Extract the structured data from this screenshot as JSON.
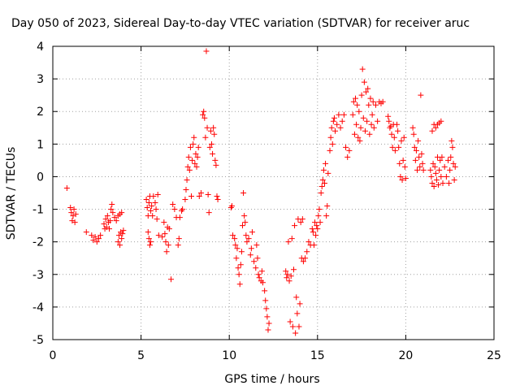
{
  "chart_data": {
    "type": "scatter",
    "title": "Day 050 of 2023, Sidereal Day-to-day VTEC variation (SDTVAR) for receiver aruc",
    "xlabel": "GPS time / hours",
    "ylabel": "SDTVAR / TECUs",
    "xlim": [
      0,
      25
    ],
    "ylim": [
      -5,
      4
    ],
    "xticks": [
      "0",
      "5",
      "10",
      "15",
      "20",
      "25"
    ],
    "yticks": [
      "-5",
      "-4",
      "-3",
      "-2",
      "-1",
      "0",
      "1",
      "2",
      "3",
      "4"
    ],
    "grid": true,
    "marker": "+",
    "color": "#ff0000",
    "series": [
      {
        "name": "SDTVAR",
        "points": [
          [
            0.8,
            -0.35
          ],
          [
            1.0,
            -0.95
          ],
          [
            1.05,
            -1.1
          ],
          [
            1.1,
            -1.35
          ],
          [
            1.15,
            -1.2
          ],
          [
            1.2,
            -1.0
          ],
          [
            1.25,
            -1.4
          ],
          [
            1.3,
            -1.15
          ],
          [
            1.9,
            -1.7
          ],
          [
            2.2,
            -1.8
          ],
          [
            2.3,
            -1.95
          ],
          [
            2.4,
            -1.85
          ],
          [
            2.5,
            -2.0
          ],
          [
            2.6,
            -1.9
          ],
          [
            2.7,
            -1.8
          ],
          [
            2.9,
            -1.45
          ],
          [
            2.95,
            -1.6
          ],
          [
            3.0,
            -1.3
          ],
          [
            3.05,
            -1.55
          ],
          [
            3.1,
            -1.2
          ],
          [
            3.15,
            -1.4
          ],
          [
            3.2,
            -1.6
          ],
          [
            3.25,
            -1.35
          ],
          [
            3.3,
            -1.0
          ],
          [
            3.35,
            -0.85
          ],
          [
            3.4,
            -1.1
          ],
          [
            3.5,
            -1.25
          ],
          [
            3.6,
            -1.35
          ],
          [
            3.7,
            -1.2
          ],
          [
            3.8,
            -1.15
          ],
          [
            3.9,
            -1.1
          ],
          [
            3.7,
            -2.0
          ],
          [
            3.75,
            -1.8
          ],
          [
            3.8,
            -2.1
          ],
          [
            3.85,
            -1.7
          ],
          [
            3.9,
            -1.9
          ],
          [
            3.95,
            -1.75
          ],
          [
            4.0,
            -1.65
          ],
          [
            5.3,
            -0.7
          ],
          [
            5.35,
            -0.95
          ],
          [
            5.4,
            -1.2
          ],
          [
            5.45,
            -0.8
          ],
          [
            5.5,
            -0.6
          ],
          [
            5.55,
            -1.05
          ],
          [
            5.6,
            -0.9
          ],
          [
            5.65,
            -1.2
          ],
          [
            5.7,
            -0.6
          ],
          [
            5.8,
            -0.8
          ],
          [
            5.85,
            -1.0
          ],
          [
            5.9,
            -1.3
          ],
          [
            5.95,
            -0.55
          ],
          [
            5.4,
            -1.7
          ],
          [
            5.45,
            -1.9
          ],
          [
            5.5,
            -2.1
          ],
          [
            5.55,
            -2.0
          ],
          [
            6.0,
            -1.8
          ],
          [
            6.2,
            -1.85
          ],
          [
            6.3,
            -1.4
          ],
          [
            6.35,
            -1.75
          ],
          [
            6.4,
            -2.0
          ],
          [
            6.45,
            -2.3
          ],
          [
            6.5,
            -1.55
          ],
          [
            6.55,
            -2.1
          ],
          [
            6.6,
            -1.6
          ],
          [
            6.7,
            -3.15
          ],
          [
            6.8,
            -0.85
          ],
          [
            6.9,
            -1.0
          ],
          [
            7.0,
            -1.25
          ],
          [
            7.1,
            -2.1
          ],
          [
            7.15,
            -1.9
          ],
          [
            7.2,
            -1.25
          ],
          [
            7.3,
            -1.05
          ],
          [
            7.35,
            -1.0
          ],
          [
            7.5,
            -0.7
          ],
          [
            7.55,
            -0.4
          ],
          [
            7.6,
            -0.1
          ],
          [
            7.65,
            0.3
          ],
          [
            7.7,
            0.6
          ],
          [
            7.75,
            0.2
          ],
          [
            7.8,
            0.9
          ],
          [
            7.85,
            -0.6
          ],
          [
            7.9,
            0.5
          ],
          [
            7.95,
            1.0
          ],
          [
            8.0,
            1.2
          ],
          [
            8.05,
            0.4
          ],
          [
            8.1,
            0.7
          ],
          [
            8.15,
            0.3
          ],
          [
            8.2,
            0.6
          ],
          [
            8.25,
            0.9
          ],
          [
            8.3,
            -0.6
          ],
          [
            8.4,
            -0.5
          ],
          [
            8.5,
            1.9
          ],
          [
            8.55,
            2.0
          ],
          [
            8.6,
            1.8
          ],
          [
            8.65,
            1.2
          ],
          [
            8.7,
            3.85
          ],
          [
            8.75,
            1.5
          ],
          [
            8.8,
            -0.55
          ],
          [
            8.85,
            -1.1
          ],
          [
            8.9,
            0.9
          ],
          [
            8.95,
            1.4
          ],
          [
            9.0,
            1.0
          ],
          [
            9.05,
            0.7
          ],
          [
            9.1,
            1.5
          ],
          [
            9.15,
            1.3
          ],
          [
            9.2,
            0.5
          ],
          [
            9.25,
            0.35
          ],
          [
            9.3,
            -0.6
          ],
          [
            9.35,
            -0.7
          ],
          [
            10.1,
            -0.95
          ],
          [
            10.15,
            -0.9
          ],
          [
            10.2,
            -1.8
          ],
          [
            10.3,
            -1.9
          ],
          [
            10.35,
            -2.1
          ],
          [
            10.4,
            -2.5
          ],
          [
            10.45,
            -2.2
          ],
          [
            10.5,
            -2.8
          ],
          [
            10.55,
            -3.0
          ],
          [
            10.6,
            -3.3
          ],
          [
            10.65,
            -2.7
          ],
          [
            10.7,
            -2.3
          ],
          [
            10.75,
            -1.5
          ],
          [
            10.8,
            -0.5
          ],
          [
            10.85,
            -1.2
          ],
          [
            10.9,
            -1.4
          ],
          [
            10.95,
            -1.8
          ],
          [
            11.0,
            -2.0
          ],
          [
            11.1,
            -1.9
          ],
          [
            11.2,
            -2.4
          ],
          [
            11.25,
            -2.2
          ],
          [
            11.3,
            -1.7
          ],
          [
            11.4,
            -2.6
          ],
          [
            11.5,
            -2.8
          ],
          [
            11.55,
            -2.1
          ],
          [
            11.6,
            -2.5
          ],
          [
            11.65,
            -3.0
          ],
          [
            11.7,
            -3.1
          ],
          [
            11.8,
            -3.2
          ],
          [
            11.85,
            -2.9
          ],
          [
            11.9,
            -3.25
          ],
          [
            12.0,
            -3.5
          ],
          [
            12.05,
            -3.8
          ],
          [
            12.1,
            -4.05
          ],
          [
            12.15,
            -4.3
          ],
          [
            12.2,
            -4.7
          ],
          [
            12.25,
            -4.5
          ],
          [
            13.2,
            -2.9
          ],
          [
            13.25,
            -3.1
          ],
          [
            13.3,
            -3.0
          ],
          [
            13.35,
            -2.0
          ],
          [
            13.4,
            -3.2
          ],
          [
            13.45,
            -4.45
          ],
          [
            13.5,
            -3.05
          ],
          [
            13.55,
            -1.9
          ],
          [
            13.6,
            -4.6
          ],
          [
            13.65,
            -2.85
          ],
          [
            13.7,
            -1.5
          ],
          [
            13.75,
            -4.8
          ],
          [
            13.8,
            -3.7
          ],
          [
            13.85,
            -4.2
          ],
          [
            13.9,
            -1.3
          ],
          [
            13.95,
            -4.6
          ],
          [
            14.0,
            -3.9
          ],
          [
            14.05,
            -1.4
          ],
          [
            14.1,
            -2.5
          ],
          [
            14.15,
            -1.3
          ],
          [
            14.2,
            -2.6
          ],
          [
            14.3,
            -2.5
          ],
          [
            14.4,
            -2.3
          ],
          [
            14.5,
            -2.0
          ],
          [
            14.6,
            -2.1
          ],
          [
            14.7,
            -1.6
          ],
          [
            14.75,
            -1.7
          ],
          [
            14.8,
            -2.1
          ],
          [
            14.85,
            -1.4
          ],
          [
            14.9,
            -1.8
          ],
          [
            14.95,
            -1.5
          ],
          [
            15.0,
            -1.6
          ],
          [
            15.05,
            -1.2
          ],
          [
            15.1,
            -1.0
          ],
          [
            15.15,
            -1.4
          ],
          [
            15.2,
            -0.5
          ],
          [
            15.25,
            -0.3
          ],
          [
            15.3,
            -0.1
          ],
          [
            15.35,
            0.2
          ],
          [
            15.4,
            -0.2
          ],
          [
            15.45,
            0.4
          ],
          [
            15.5,
            -1.2
          ],
          [
            15.55,
            -0.9
          ],
          [
            15.6,
            0.1
          ],
          [
            15.7,
            0.8
          ],
          [
            15.75,
            1.2
          ],
          [
            15.8,
            1.5
          ],
          [
            15.85,
            1.0
          ],
          [
            15.9,
            1.7
          ],
          [
            15.95,
            1.8
          ],
          [
            16.0,
            1.4
          ],
          [
            16.1,
            1.6
          ],
          [
            16.2,
            1.9
          ],
          [
            16.3,
            1.5
          ],
          [
            16.4,
            1.7
          ],
          [
            16.5,
            1.9
          ],
          [
            16.6,
            0.9
          ],
          [
            16.7,
            0.6
          ],
          [
            16.8,
            0.8
          ],
          [
            17.0,
            1.9
          ],
          [
            17.05,
            2.3
          ],
          [
            17.1,
            1.3
          ],
          [
            17.15,
            2.4
          ],
          [
            17.2,
            1.6
          ],
          [
            17.25,
            2.2
          ],
          [
            17.3,
            1.2
          ],
          [
            17.35,
            2.0
          ],
          [
            17.4,
            1.1
          ],
          [
            17.45,
            1.5
          ],
          [
            17.5,
            2.5
          ],
          [
            17.55,
            3.3
          ],
          [
            17.6,
            1.8
          ],
          [
            17.65,
            2.9
          ],
          [
            17.7,
            1.4
          ],
          [
            17.75,
            2.6
          ],
          [
            17.8,
            1.7
          ],
          [
            17.85,
            2.7
          ],
          [
            17.9,
            2.2
          ],
          [
            17.95,
            1.3
          ],
          [
            18.0,
            2.4
          ],
          [
            18.05,
            1.6
          ],
          [
            18.1,
            1.9
          ],
          [
            18.15,
            2.3
          ],
          [
            18.2,
            1.5
          ],
          [
            18.3,
            2.2
          ],
          [
            18.4,
            1.7
          ],
          [
            18.5,
            2.3
          ],
          [
            18.6,
            2.25
          ],
          [
            18.7,
            2.3
          ],
          [
            19.0,
            1.85
          ],
          [
            19.05,
            1.7
          ],
          [
            19.1,
            1.5
          ],
          [
            19.15,
            1.55
          ],
          [
            19.2,
            1.3
          ],
          [
            19.25,
            0.9
          ],
          [
            19.3,
            1.6
          ],
          [
            19.35,
            1.2
          ],
          [
            19.4,
            0.8
          ],
          [
            19.5,
            1.6
          ],
          [
            19.55,
            1.4
          ],
          [
            19.6,
            0.9
          ],
          [
            19.65,
            0.4
          ],
          [
            19.7,
            0.0
          ],
          [
            19.75,
            1.1
          ],
          [
            19.8,
            -0.1
          ],
          [
            19.85,
            0.5
          ],
          [
            19.9,
            1.2
          ],
          [
            19.95,
            0.3
          ],
          [
            20.0,
            -0.05
          ],
          [
            20.4,
            1.5
          ],
          [
            20.45,
            1.3
          ],
          [
            20.5,
            0.9
          ],
          [
            20.55,
            0.5
          ],
          [
            20.6,
            0.8
          ],
          [
            20.65,
            0.2
          ],
          [
            20.7,
            1.1
          ],
          [
            20.75,
            0.6
          ],
          [
            20.8,
            0.3
          ],
          [
            20.85,
            2.5
          ],
          [
            20.9,
            0.7
          ],
          [
            20.95,
            0.4
          ],
          [
            21.0,
            0.2
          ],
          [
            21.5,
            1.4
          ],
          [
            21.6,
            1.6
          ],
          [
            21.7,
            1.5
          ],
          [
            21.8,
            1.6
          ],
          [
            21.9,
            1.65
          ],
          [
            22.0,
            1.7
          ],
          [
            21.4,
            0.2
          ],
          [
            21.45,
            0.0
          ],
          [
            21.5,
            -0.2
          ],
          [
            21.55,
            0.4
          ],
          [
            21.6,
            -0.3
          ],
          [
            21.65,
            0.3
          ],
          [
            21.7,
            0.1
          ],
          [
            21.75,
            -0.1
          ],
          [
            21.8,
            0.6
          ],
          [
            21.85,
            -0.25
          ],
          [
            21.9,
            0.2
          ],
          [
            21.95,
            0.5
          ],
          [
            22.0,
            0.0
          ],
          [
            22.05,
            0.6
          ],
          [
            22.1,
            -0.2
          ],
          [
            22.2,
            0.3
          ],
          [
            22.3,
            0.0
          ],
          [
            22.4,
            0.5
          ],
          [
            22.45,
            -0.2
          ],
          [
            22.5,
            0.2
          ],
          [
            22.55,
            0.6
          ],
          [
            22.6,
            1.1
          ],
          [
            22.65,
            0.9
          ],
          [
            22.7,
            0.4
          ],
          [
            22.75,
            -0.1
          ],
          [
            22.8,
            0.3
          ]
        ]
      }
    ]
  }
}
